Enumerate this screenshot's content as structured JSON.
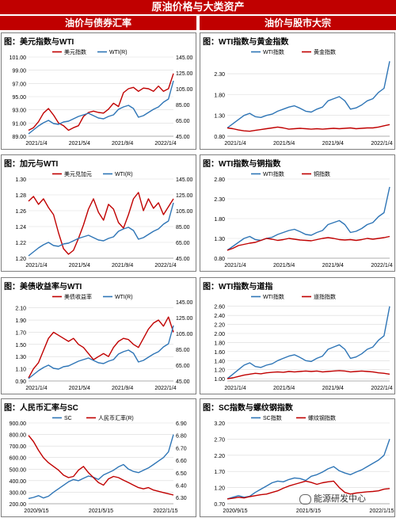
{
  "header": {
    "title": "原油价格与大类资产",
    "left_section": "油价与债券汇率",
    "right_section": "油价与股市大宗"
  },
  "watermark": "能源研发中心",
  "colors": {
    "red": "#c00000",
    "blue": "#2e75b6",
    "grid": "#d9d9d9",
    "header": "#c00000"
  },
  "chart_data": [
    {
      "type": "line",
      "title": "图：美元指数与WTI",
      "x_ticks": [
        "2021/1/4",
        "2021/5/4",
        "2021/9/4",
        "2022/1/4"
      ],
      "y_left_ticks": [
        "89.00",
        "91.00",
        "93.00",
        "95.00",
        "97.00",
        "99.00",
        "101.00"
      ],
      "y_right_ticks": [
        "45.00",
        "65.00",
        "85.00",
        "105.00",
        "125.00",
        "145.00"
      ],
      "ylim_left": [
        89,
        101
      ],
      "ylim_right": [
        45,
        145
      ],
      "series": [
        {
          "name": "美元指数",
          "axis": "left",
          "color": "#c00000",
          "values": [
            89.9,
            90.3,
            91.2,
            92.5,
            93.2,
            92.2,
            91.0,
            90.6,
            89.9,
            90.3,
            90.6,
            92.0,
            92.6,
            92.8,
            92.6,
            92.5,
            93.1,
            94.0,
            93.5,
            95.6,
            96.2,
            96.4,
            95.8,
            96.3,
            96.2,
            95.8,
            96.6,
            95.8,
            96.2,
            98.5
          ]
        },
        {
          "name": "WTI(R)",
          "axis": "right",
          "color": "#2e75b6",
          "values": [
            48,
            53,
            58,
            62,
            65,
            61,
            60,
            63,
            64,
            67,
            70,
            72,
            74,
            71,
            68,
            67,
            70,
            72,
            79,
            82,
            84,
            80,
            69,
            71,
            75,
            79,
            82,
            88,
            92,
            115
          ]
        }
      ]
    },
    {
      "type": "line",
      "title": "图：加元与WTI",
      "x_ticks": [
        "2021/1/4",
        "2021/5/4",
        "2021/9/4",
        "2022/1/4"
      ],
      "y_left_ticks": [
        "1.20",
        "1.22",
        "1.24",
        "1.26",
        "1.28",
        "1.30"
      ],
      "y_right_ticks": [
        "45.00",
        "65.00",
        "85.00",
        "105.00",
        "125.00",
        "145.00"
      ],
      "ylim_left": [
        1.2,
        1.3
      ],
      "ylim_right": [
        45,
        145
      ],
      "series": [
        {
          "name": "美元兑加元",
          "axis": "left",
          "color": "#c00000",
          "values": [
            1.272,
            1.278,
            1.268,
            1.275,
            1.264,
            1.255,
            1.232,
            1.212,
            1.205,
            1.21,
            1.225,
            1.242,
            1.262,
            1.275,
            1.258,
            1.248,
            1.268,
            1.262,
            1.245,
            1.238,
            1.255,
            1.275,
            1.283,
            1.26,
            1.275,
            1.263,
            1.27,
            1.255,
            1.265,
            1.275
          ]
        },
        {
          "name": "WTI(R)",
          "axis": "right",
          "color": "#2e75b6",
          "values": [
            48,
            53,
            58,
            62,
            65,
            61,
            60,
            63,
            64,
            67,
            70,
            72,
            74,
            71,
            68,
            67,
            70,
            72,
            79,
            82,
            84,
            80,
            69,
            71,
            75,
            79,
            82,
            88,
            92,
            115
          ]
        }
      ]
    },
    {
      "type": "line",
      "title": "图：美债收益率与WTI",
      "x_ticks": [
        "2021/1/4",
        "2021/5/4",
        "2021/9/4",
        "2022/1/4"
      ],
      "y_left_ticks": [
        "0.90",
        "1.10",
        "1.30",
        "1.50",
        "1.70",
        "1.90",
        "2.10"
      ],
      "y_right_ticks": [
        "45.00",
        "65.00",
        "85.00",
        "105.00",
        "125.00",
        "145.00"
      ],
      "ylim_left": [
        0.9,
        2.2
      ],
      "ylim_right": [
        45,
        145
      ],
      "series": [
        {
          "name": "美债收益率",
          "axis": "left",
          "color": "#c00000",
          "values": [
            0.95,
            1.1,
            1.2,
            1.4,
            1.6,
            1.7,
            1.65,
            1.6,
            1.55,
            1.6,
            1.5,
            1.45,
            1.35,
            1.25,
            1.3,
            1.35,
            1.3,
            1.45,
            1.55,
            1.6,
            1.58,
            1.5,
            1.45,
            1.6,
            1.75,
            1.85,
            1.9,
            1.8,
            1.95,
            1.7
          ]
        },
        {
          "name": "WTI(R)",
          "axis": "right",
          "color": "#2e75b6",
          "values": [
            48,
            53,
            58,
            62,
            65,
            61,
            60,
            63,
            64,
            67,
            70,
            72,
            74,
            71,
            68,
            67,
            70,
            72,
            79,
            82,
            84,
            80,
            69,
            71,
            75,
            79,
            82,
            88,
            92,
            115
          ]
        }
      ]
    },
    {
      "type": "line",
      "title": "图：人民币汇率与SC",
      "x_ticks": [
        "2020/9/15",
        "2021/5/15",
        "2022/1/15"
      ],
      "y_left_ticks": [
        "200.00",
        "300.00",
        "400.00",
        "500.00",
        "600.00",
        "700.00",
        "800.00",
        "900.00"
      ],
      "y_right_ticks": [
        "6.30",
        "6.40",
        "6.50",
        "6.60",
        "6.70",
        "6.80",
        "6.90"
      ],
      "ylim_left": [
        200,
        900
      ],
      "ylim_right": [
        6.25,
        6.9
      ],
      "series": [
        {
          "name": "SC",
          "axis": "left",
          "color": "#2e75b6",
          "values": [
            245,
            255,
            270,
            250,
            265,
            300,
            330,
            360,
            390,
            410,
            400,
            420,
            440,
            430,
            410,
            450,
            470,
            490,
            520,
            540,
            500,
            480,
            470,
            490,
            510,
            540,
            570,
            600,
            650,
            800
          ]
        },
        {
          "name": "人民币汇率(R)",
          "axis": "right",
          "color": "#c00000",
          "values": [
            6.8,
            6.75,
            6.68,
            6.62,
            6.58,
            6.55,
            6.52,
            6.48,
            6.46,
            6.47,
            6.52,
            6.55,
            6.5,
            6.46,
            6.42,
            6.4,
            6.45,
            6.47,
            6.46,
            6.44,
            6.42,
            6.4,
            6.38,
            6.37,
            6.38,
            6.36,
            6.35,
            6.34,
            6.33,
            6.32
          ]
        }
      ]
    },
    {
      "type": "line",
      "title": "图：WTI指数与黄金指数",
      "x_ticks": [
        "2021/1/4",
        "2021/5/4",
        "2021/9/4",
        "2022/1/4"
      ],
      "y_left_ticks": [
        "0.80",
        "1.30",
        "1.80",
        "2.30"
      ],
      "ylim_left": [
        0.8,
        2.7
      ],
      "series": [
        {
          "name": "WTI指数",
          "axis": "left",
          "color": "#2e75b6",
          "values": [
            1.0,
            1.1,
            1.2,
            1.3,
            1.35,
            1.27,
            1.25,
            1.3,
            1.33,
            1.4,
            1.45,
            1.5,
            1.53,
            1.47,
            1.4,
            1.38,
            1.45,
            1.5,
            1.65,
            1.7,
            1.75,
            1.65,
            1.45,
            1.48,
            1.55,
            1.65,
            1.7,
            1.85,
            1.95,
            2.6
          ]
        },
        {
          "name": "黄金指数",
          "axis": "left",
          "color": "#c00000",
          "values": [
            1.0,
            0.98,
            0.95,
            0.93,
            0.92,
            0.94,
            0.96,
            0.98,
            1.0,
            1.02,
            1.0,
            0.97,
            0.98,
            0.99,
            0.98,
            0.97,
            0.98,
            0.97,
            0.98,
            0.99,
            0.98,
            0.99,
            1.0,
            0.98,
            0.99,
            1.0,
            1.0,
            1.02,
            1.05,
            1.08
          ]
        }
      ]
    },
    {
      "type": "line",
      "title": "图：WTI指数与铜指数",
      "x_ticks": [
        "2021/1/4",
        "2021/5/4",
        "2021/9/4",
        "2022/1/4"
      ],
      "y_left_ticks": [
        "0.80",
        "1.30",
        "1.80",
        "2.30",
        "2.80"
      ],
      "ylim_left": [
        0.8,
        2.8
      ],
      "series": [
        {
          "name": "WTI指数",
          "axis": "left",
          "color": "#2e75b6",
          "values": [
            1.0,
            1.1,
            1.2,
            1.3,
            1.35,
            1.27,
            1.25,
            1.3,
            1.33,
            1.4,
            1.45,
            1.5,
            1.53,
            1.47,
            1.4,
            1.38,
            1.45,
            1.5,
            1.65,
            1.7,
            1.75,
            1.65,
            1.45,
            1.48,
            1.55,
            1.65,
            1.7,
            1.85,
            1.95,
            2.6
          ]
        },
        {
          "name": "铜指数",
          "axis": "left",
          "color": "#c00000",
          "values": [
            1.0,
            1.05,
            1.12,
            1.15,
            1.18,
            1.2,
            1.25,
            1.3,
            1.28,
            1.25,
            1.27,
            1.3,
            1.28,
            1.26,
            1.25,
            1.24,
            1.27,
            1.3,
            1.32,
            1.3,
            1.27,
            1.26,
            1.27,
            1.25,
            1.27,
            1.3,
            1.28,
            1.3,
            1.32,
            1.35
          ]
        }
      ]
    },
    {
      "type": "line",
      "title": "图：WTI指数与道指",
      "x_ticks": [
        "2021/1/4",
        "2021/5/4",
        "2021/9/4",
        "2022/1/4"
      ],
      "y_left_ticks": [
        "1.00",
        "1.20",
        "1.40",
        "1.60",
        "1.80",
        "2.00",
        "2.20",
        "2.40",
        "2.60"
      ],
      "ylim_left": [
        0.95,
        2.7
      ],
      "series": [
        {
          "name": "WTI指数",
          "axis": "left",
          "color": "#2e75b6",
          "values": [
            1.0,
            1.1,
            1.2,
            1.3,
            1.35,
            1.27,
            1.25,
            1.3,
            1.33,
            1.4,
            1.45,
            1.5,
            1.53,
            1.47,
            1.4,
            1.38,
            1.45,
            1.5,
            1.65,
            1.7,
            1.75,
            1.65,
            1.45,
            1.48,
            1.55,
            1.65,
            1.7,
            1.85,
            1.95,
            2.6
          ]
        },
        {
          "name": "道指指数",
          "axis": "left",
          "color": "#c00000",
          "values": [
            1.0,
            1.02,
            1.05,
            1.08,
            1.1,
            1.12,
            1.11,
            1.13,
            1.14,
            1.15,
            1.14,
            1.16,
            1.15,
            1.16,
            1.17,
            1.16,
            1.17,
            1.15,
            1.16,
            1.17,
            1.18,
            1.17,
            1.15,
            1.16,
            1.17,
            1.16,
            1.15,
            1.13,
            1.12,
            1.1
          ]
        }
      ]
    },
    {
      "type": "line",
      "title": "图：SC指数与螺纹钢指数",
      "x_ticks": [
        "2020/9/15",
        "2021/5/15",
        "2022/1/15"
      ],
      "y_left_ticks": [
        "0.70",
        "1.20",
        "1.70",
        "2.20",
        "2.70",
        "3.20"
      ],
      "ylim_left": [
        0.7,
        3.2
      ],
      "series": [
        {
          "name": "SC指数",
          "axis": "left",
          "color": "#2e75b6",
          "values": [
            0.85,
            0.9,
            0.95,
            0.9,
            0.93,
            1.05,
            1.15,
            1.25,
            1.35,
            1.4,
            1.38,
            1.45,
            1.5,
            1.48,
            1.42,
            1.55,
            1.6,
            1.68,
            1.78,
            1.85,
            1.72,
            1.65,
            1.6,
            1.68,
            1.75,
            1.85,
            1.95,
            2.05,
            2.2,
            2.7
          ]
        },
        {
          "name": "螺纹钢指数",
          "axis": "left",
          "color": "#c00000",
          "values": [
            0.85,
            0.87,
            0.9,
            0.88,
            0.92,
            0.95,
            0.98,
            1.0,
            1.05,
            1.1,
            1.18,
            1.25,
            1.3,
            1.35,
            1.4,
            1.36,
            1.3,
            1.35,
            1.38,
            1.4,
            1.2,
            1.05,
            1.0,
            1.03,
            1.05,
            1.07,
            1.08,
            1.1,
            1.15,
            1.17
          ]
        }
      ]
    }
  ]
}
